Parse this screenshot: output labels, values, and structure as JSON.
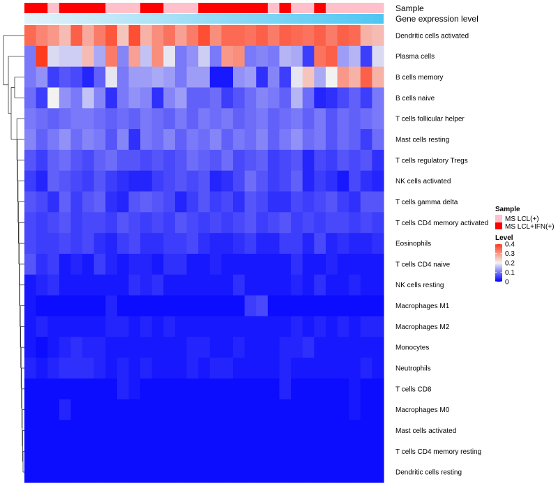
{
  "chart_data": {
    "type": "heatmap",
    "annotation_labels": [
      "Sample",
      "Gene expression level"
    ],
    "sample_groups": [
      "MS LCL(+)",
      "MS LCL+IFN(+)"
    ],
    "sample_colors": [
      "#ffc0cb",
      "#ff0000"
    ],
    "columns": [
      1,
      1,
      0,
      1,
      1,
      1,
      1,
      0,
      0,
      0,
      1,
      1,
      0,
      0,
      0,
      1,
      1,
      1,
      1,
      1,
      1,
      0,
      1,
      0,
      0,
      1,
      0,
      0,
      0,
      0,
      0
    ],
    "rows": [
      "Dendritic cells activated",
      "Plasma cells",
      "B cells memory",
      "B cells naive",
      "T cells follicular helper",
      "Mast cells resting",
      "T cells regulatory  Tregs",
      "NK cells activated",
      "T cells gamma delta",
      "T cells CD4 memory activated",
      "Eosinophils",
      "T cells CD4 naive",
      "NK cells resting",
      "Macrophages M1",
      "Macrophages M2",
      "Monocytes",
      "Neutrophils",
      "T cells CD8",
      "Macrophages M0",
      "Mast cells activated",
      "T cells CD4 memory resting",
      "Dendritic cells resting"
    ],
    "values": [
      [
        0.35,
        0.32,
        0.3,
        0.26,
        0.36,
        0.28,
        0.33,
        0.37,
        0.25,
        0.38,
        0.27,
        0.31,
        0.34,
        0.29,
        0.33,
        0.38,
        0.31,
        0.35,
        0.35,
        0.34,
        0.36,
        0.33,
        0.36,
        0.35,
        0.34,
        0.36,
        0.33,
        0.36,
        0.35,
        0.27,
        0.26
      ],
      [
        0.1,
        0.4,
        0.18,
        0.17,
        0.17,
        0.26,
        0.14,
        0.33,
        0.11,
        0.29,
        0.16,
        0.31,
        0.19,
        0.1,
        0.12,
        0.17,
        0.1,
        0.3,
        0.31,
        0.1,
        0.11,
        0.1,
        0.15,
        0.14,
        0.05,
        0.34,
        0.36,
        0.13,
        0.15,
        0.05,
        0.18
      ],
      [
        0.1,
        0.12,
        0.05,
        0.07,
        0.06,
        0.03,
        0.08,
        0.19,
        0.1,
        0.13,
        0.13,
        0.14,
        0.13,
        0.1,
        0.13,
        0.13,
        0.02,
        0.02,
        0.12,
        0.13,
        0.04,
        0.11,
        0.05,
        0.19,
        0.25,
        0.14,
        0.2,
        0.3,
        0.27,
        0.36,
        0.27
      ],
      [
        0.09,
        0.05,
        0.2,
        0.12,
        0.1,
        0.16,
        0.11,
        0.04,
        0.1,
        0.12,
        0.11,
        0.04,
        0.11,
        0.13,
        0.08,
        0.08,
        0.09,
        0.05,
        0.07,
        0.09,
        0.11,
        0.1,
        0.08,
        0.15,
        0.09,
        0.03,
        0.04,
        0.06,
        0.08,
        0.05,
        0.1
      ],
      [
        0.1,
        0.09,
        0.08,
        0.09,
        0.1,
        0.1,
        0.09,
        0.08,
        0.09,
        0.08,
        0.1,
        0.09,
        0.08,
        0.1,
        0.08,
        0.1,
        0.09,
        0.1,
        0.08,
        0.09,
        0.1,
        0.08,
        0.09,
        0.1,
        0.08,
        0.1,
        0.07,
        0.09,
        0.08,
        0.09,
        0.1
      ],
      [
        0.11,
        0.08,
        0.1,
        0.12,
        0.09,
        0.11,
        0.1,
        0.07,
        0.11,
        0.04,
        0.1,
        0.09,
        0.11,
        0.08,
        0.1,
        0.09,
        0.11,
        0.08,
        0.1,
        0.09,
        0.11,
        0.08,
        0.1,
        0.12,
        0.09,
        0.1,
        0.07,
        0.09,
        0.08,
        0.05,
        0.09
      ],
      [
        0.07,
        0.05,
        0.08,
        0.09,
        0.07,
        0.06,
        0.08,
        0.09,
        0.07,
        0.07,
        0.06,
        0.07,
        0.06,
        0.07,
        0.09,
        0.08,
        0.07,
        0.09,
        0.06,
        0.07,
        0.08,
        0.05,
        0.06,
        0.07,
        0.03,
        0.06,
        0.05,
        0.07,
        0.06,
        0.07,
        0.04
      ],
      [
        0.05,
        0.03,
        0.08,
        0.07,
        0.06,
        0.05,
        0.07,
        0.05,
        0.04,
        0.03,
        0.03,
        0.05,
        0.06,
        0.07,
        0.06,
        0.07,
        0.03,
        0.04,
        0.06,
        0.09,
        0.07,
        0.05,
        0.06,
        0.08,
        0.03,
        0.05,
        0.04,
        0.02,
        0.06,
        0.04,
        0.03
      ],
      [
        0.07,
        0.06,
        0.04,
        0.08,
        0.05,
        0.07,
        0.08,
        0.04,
        0.03,
        0.07,
        0.08,
        0.07,
        0.06,
        0.03,
        0.05,
        0.07,
        0.05,
        0.06,
        0.04,
        0.07,
        0.06,
        0.04,
        0.04,
        0.06,
        0.05,
        0.06,
        0.07,
        0.05,
        0.04,
        0.07,
        0.07
      ],
      [
        0.06,
        0.05,
        0.06,
        0.07,
        0.05,
        0.06,
        0.06,
        0.05,
        0.07,
        0.06,
        0.05,
        0.06,
        0.05,
        0.07,
        0.06,
        0.05,
        0.06,
        0.05,
        0.06,
        0.07,
        0.05,
        0.06,
        0.07,
        0.05,
        0.06,
        0.05,
        0.06,
        0.06,
        0.05,
        0.06,
        0.05
      ],
      [
        0.06,
        0.05,
        0.05,
        0.06,
        0.05,
        0.06,
        0.04,
        0.03,
        0.05,
        0.06,
        0.04,
        0.04,
        0.05,
        0.05,
        0.06,
        0.04,
        0.03,
        0.03,
        0.04,
        0.05,
        0.03,
        0.03,
        0.05,
        0.05,
        0.03,
        0.06,
        0.03,
        0.04,
        0.03,
        0.03,
        0.04
      ],
      [
        0.07,
        0.04,
        0.05,
        0.02,
        0.03,
        0.02,
        0.05,
        0.03,
        0.02,
        0.03,
        0.03,
        0.02,
        0.04,
        0.04,
        0.02,
        0.02,
        0.03,
        0.02,
        0.02,
        0.02,
        0.02,
        0.02,
        0.02,
        0.04,
        0.02,
        0.02,
        0.03,
        0.02,
        0.02,
        0.02,
        0.02
      ],
      [
        0.02,
        0.03,
        0.04,
        0.02,
        0.02,
        0.02,
        0.02,
        0.02,
        0.02,
        0.04,
        0.03,
        0.04,
        0.02,
        0.02,
        0.02,
        0.02,
        0.02,
        0.02,
        0.04,
        0.02,
        0.02,
        0.02,
        0.02,
        0.03,
        0.02,
        0.04,
        0.02,
        0.02,
        0.03,
        0.02,
        0.02
      ],
      [
        0.02,
        0.01,
        0.01,
        0.01,
        0.01,
        0.01,
        0.01,
        0.03,
        0.01,
        0.01,
        0.01,
        0.01,
        0.01,
        0.01,
        0.01,
        0.01,
        0.01,
        0.01,
        0.01,
        0.05,
        0.06,
        0.01,
        0.01,
        0.01,
        0.01,
        0.01,
        0.01,
        0.01,
        0.01,
        0.01,
        0.01
      ],
      [
        0.02,
        0.03,
        0.02,
        0.02,
        0.02,
        0.02,
        0.02,
        0.03,
        0.03,
        0.02,
        0.03,
        0.02,
        0.03,
        0.02,
        0.02,
        0.02,
        0.02,
        0.02,
        0.02,
        0.02,
        0.02,
        0.02,
        0.02,
        0.03,
        0.02,
        0.03,
        0.02,
        0.03,
        0.02,
        0.03,
        0.03
      ],
      [
        0.02,
        0.01,
        0.02,
        0.03,
        0.04,
        0.03,
        0.03,
        0.02,
        0.02,
        0.02,
        0.02,
        0.02,
        0.02,
        0.02,
        0.03,
        0.03,
        0.02,
        0.02,
        0.03,
        0.02,
        0.02,
        0.02,
        0.03,
        0.03,
        0.04,
        0.02,
        0.02,
        0.02,
        0.02,
        0.02,
        0.02
      ],
      [
        0.03,
        0.02,
        0.03,
        0.04,
        0.04,
        0.04,
        0.03,
        0.02,
        0.03,
        0.02,
        0.03,
        0.02,
        0.02,
        0.02,
        0.03,
        0.02,
        0.03,
        0.03,
        0.02,
        0.02,
        0.02,
        0.02,
        0.03,
        0.02,
        0.02,
        0.02,
        0.02,
        0.02,
        0.02,
        0.03,
        0.02
      ],
      [
        0.01,
        0.01,
        0.01,
        0.01,
        0.01,
        0.01,
        0.01,
        0.01,
        0.03,
        0.02,
        0.01,
        0.01,
        0.01,
        0.01,
        0.01,
        0.01,
        0.01,
        0.01,
        0.01,
        0.01,
        0.01,
        0.01,
        0.03,
        0.01,
        0.01,
        0.01,
        0.01,
        0.01,
        0.02,
        0.01,
        0.01
      ],
      [
        0.01,
        0.01,
        0.01,
        0.03,
        0.01,
        0.01,
        0.01,
        0.01,
        0.01,
        0.01,
        0.01,
        0.01,
        0.01,
        0.01,
        0.01,
        0.01,
        0.01,
        0.01,
        0.01,
        0.01,
        0.01,
        0.01,
        0.01,
        0.01,
        0.01,
        0.01,
        0.01,
        0.01,
        0.02,
        0.01,
        0.01
      ],
      [
        0.01,
        0.01,
        0.01,
        0.01,
        0.01,
        0.01,
        0.01,
        0.01,
        0.01,
        0.01,
        0.01,
        0.01,
        0.01,
        0.01,
        0.01,
        0.01,
        0.01,
        0.01,
        0.01,
        0.01,
        0.01,
        0.01,
        0.01,
        0.01,
        0.01,
        0.01,
        0.01,
        0.01,
        0.01,
        0.01,
        0.01
      ],
      [
        0.01,
        0.01,
        0.01,
        0.01,
        0.01,
        0.01,
        0.01,
        0.01,
        0.01,
        0.01,
        0.01,
        0.01,
        0.01,
        0.01,
        0.01,
        0.01,
        0.01,
        0.01,
        0.01,
        0.01,
        0.01,
        0.01,
        0.01,
        0.01,
        0.01,
        0.01,
        0.01,
        0.01,
        0.01,
        0.01,
        0.01
      ],
      [
        0.01,
        0.01,
        0.01,
        0.01,
        0.01,
        0.01,
        0.01,
        0.01,
        0.01,
        0.01,
        0.01,
        0.01,
        0.01,
        0.01,
        0.01,
        0.01,
        0.01,
        0.01,
        0.01,
        0.01,
        0.01,
        0.01,
        0.01,
        0.01,
        0.01,
        0.01,
        0.01,
        0.01,
        0.01,
        0.01,
        0.01
      ]
    ],
    "color_scale": {
      "stops": [
        {
          "value": 0,
          "color": "#0000ff"
        },
        {
          "value": 0.2,
          "color": "#f2f2f2"
        },
        {
          "value": 0.4,
          "color": "#ff3c1e"
        }
      ]
    },
    "expression_gradient": [
      "#e4f3fa",
      "#4dc6f2"
    ],
    "legend": {
      "sample_title": "Sample",
      "level_title": "Level",
      "level_ticks": [
        "0.4",
        "0.3",
        "0.2",
        "0.1",
        "0"
      ],
      "level_tick_values": [
        0.4,
        0.3,
        0.2,
        0.1,
        0
      ],
      "placement": "right"
    }
  }
}
